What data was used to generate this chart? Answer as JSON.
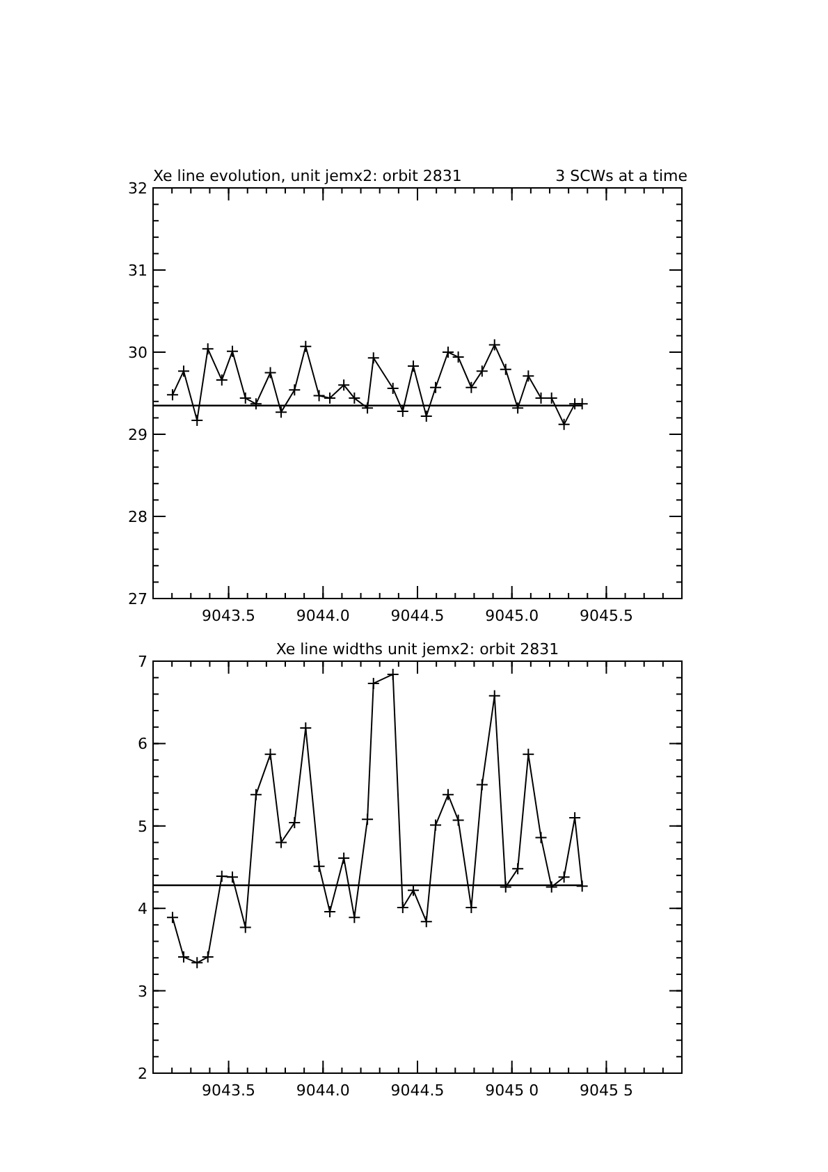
{
  "chart_data": [
    {
      "type": "line",
      "title": "Xe line evolution, unit jemx2: orbit 2831",
      "annotations": [
        "3 SCWs at a time"
      ],
      "marker": "cross",
      "line_style": "solid",
      "grid": false,
      "x": [
        9043.203,
        9043.262,
        9043.333,
        9043.39,
        9043.464,
        9043.52,
        9043.589,
        9043.645,
        9043.721,
        9043.778,
        9043.849,
        9043.908,
        9043.979,
        9044.036,
        9044.11,
        9044.166,
        9044.235,
        9044.267,
        9044.37,
        9044.422,
        9044.478,
        9044.547,
        9044.596,
        9044.662,
        9044.716,
        9044.785,
        9044.842,
        9044.908,
        9044.967,
        9045.031,
        9045.087,
        9045.154,
        9045.21,
        9045.276,
        9045.333,
        9045.372
      ],
      "series": [
        {
          "color": "#000000",
          "values": [
            29.48,
            29.77,
            29.17,
            30.04,
            29.66,
            30.01,
            29.44,
            29.37,
            29.75,
            29.27,
            29.54,
            30.07,
            29.47,
            29.44,
            29.6,
            29.44,
            29.32,
            29.93,
            29.56,
            29.28,
            29.83,
            29.22,
            29.57,
            30.0,
            29.94,
            29.57,
            29.77,
            30.09,
            29.79,
            29.32,
            29.71,
            29.44,
            29.44,
            29.12,
            29.37,
            29.37
          ]
        }
      ],
      "ref_lines": [
        {
          "axis": "y",
          "value": 29.35,
          "color": "#000000"
        }
      ],
      "xlim": [
        9043.1,
        9045.9
      ],
      "xticks": [
        {
          "value": 9043.5,
          "label": "9043.5"
        },
        {
          "value": 9044.0,
          "label": "9044.0"
        },
        {
          "value": 9044.5,
          "label": "9044.5"
        },
        {
          "value": 9045.0,
          "label": "9045.0"
        },
        {
          "value": 9045.5,
          "label": "9045.5"
        }
      ],
      "ylim": [
        27,
        32
      ],
      "yticks": [
        27,
        28,
        29,
        30,
        31,
        32
      ]
    },
    {
      "type": "line",
      "title": "Xe line widths unit jemx2: orbit 2831",
      "marker": "cross",
      "line_style": "solid",
      "grid": false,
      "x": [
        9043.203,
        9043.262,
        9043.333,
        9043.39,
        9043.464,
        9043.52,
        9043.589,
        9043.645,
        9043.721,
        9043.778,
        9043.849,
        9043.908,
        9043.979,
        9044.036,
        9044.11,
        9044.166,
        9044.235,
        9044.267,
        9044.37,
        9044.422,
        9044.478,
        9044.547,
        9044.596,
        9044.662,
        9044.716,
        9044.785,
        9044.842,
        9044.908,
        9044.967,
        9045.031,
        9045.087,
        9045.154,
        9045.21,
        9045.276,
        9045.333,
        9045.372
      ],
      "series": [
        {
          "color": "#000000",
          "values": [
            3.89,
            3.41,
            3.34,
            3.41,
            4.39,
            4.38,
            3.77,
            5.38,
            5.87,
            4.8,
            5.04,
            6.19,
            4.51,
            3.96,
            4.61,
            3.89,
            5.08,
            6.73,
            6.84,
            4.01,
            4.22,
            3.84,
            5.01,
            5.38,
            5.07,
            4.01,
            5.5,
            6.58,
            4.26,
            4.48,
            5.87,
            4.86,
            4.26,
            4.38,
            5.1,
            4.27
          ]
        }
      ],
      "ref_lines": [
        {
          "axis": "y",
          "value": 4.28,
          "color": "#000000"
        }
      ],
      "xlim": [
        9043.1,
        9045.9
      ],
      "xticks": [
        {
          "value": 9043.5,
          "label": "9043.5"
        },
        {
          "value": 9044.0,
          "label": "9044.0"
        },
        {
          "value": 9044.5,
          "label": "9044.5"
        },
        {
          "value": 9045.0,
          "label": "9045 0"
        },
        {
          "value": 9045.5,
          "label": "9045 5"
        }
      ],
      "ylim": [
        2,
        7
      ],
      "yticks": [
        2,
        3,
        4,
        5,
        6,
        7
      ]
    }
  ]
}
